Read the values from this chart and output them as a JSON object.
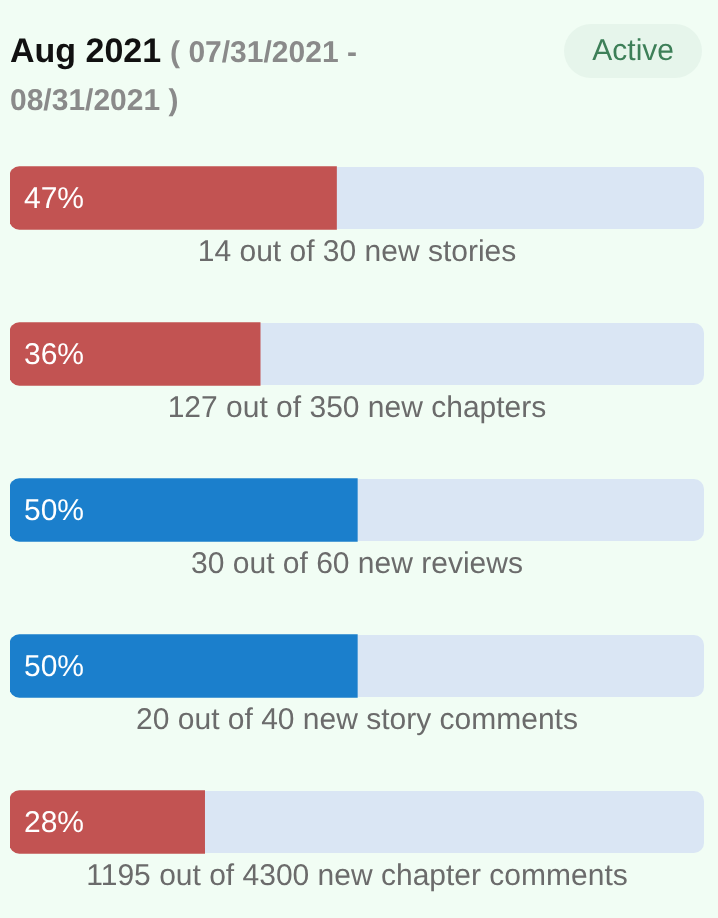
{
  "chart_data": {
    "type": "bar",
    "orientation": "horizontal",
    "title": "Aug 2021",
    "subtitle": "( 07/31/2021 - 08/31/2021 )",
    "annotations": [
      "Active"
    ],
    "categories": [
      "14 out of 30 new stories",
      "127 out of 350 new chapters",
      "30 out of 60 new reviews",
      "20 out of 40 new story comments",
      "1195 out of 4300 new chapter comments"
    ],
    "values": [
      47,
      36,
      50,
      50,
      28
    ],
    "colors": [
      "#c25352",
      "#c25352",
      "#1b7fcc",
      "#1b7fcc",
      "#c25352"
    ],
    "value_labels": [
      "47%",
      "36%",
      "50%",
      "50%",
      "28%"
    ],
    "xlim": [
      0,
      100
    ],
    "tick_labels": "y",
    "legend": false
  }
}
